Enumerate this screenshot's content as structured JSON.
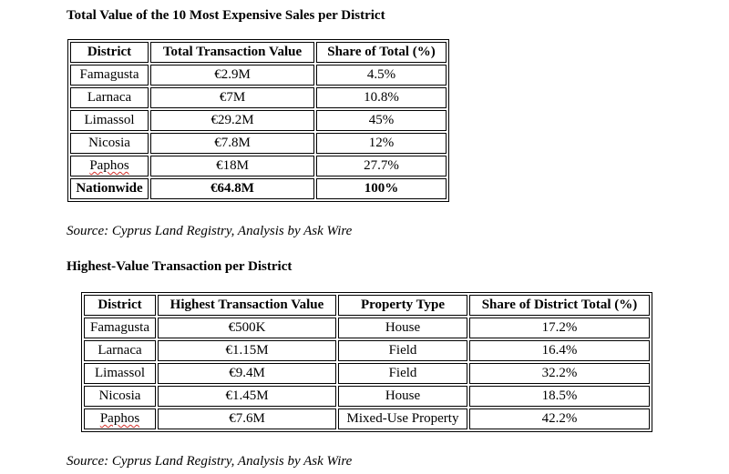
{
  "section1": {
    "title": "Total Value of the 10 Most Expensive Sales per District",
    "headers": [
      "District",
      "Total Transaction Value",
      "Share of Total (%)"
    ],
    "rows": [
      [
        "Famagusta",
        "€2.9M",
        "4.5%"
      ],
      [
        "Larnaca",
        "€7M",
        "10.8%"
      ],
      [
        "Limassol",
        "€29.2M",
        "45%"
      ],
      [
        "Nicosia",
        "€7.8M",
        "12%"
      ],
      [
        "Paphos",
        "€18M",
        "27.7%"
      ]
    ],
    "total_row": [
      "Nationwide",
      "€64.8M",
      "100%"
    ],
    "source": "Source: Cyprus Land Registry, Analysis by Ask Wire"
  },
  "section2": {
    "title": "Highest-Value Transaction per District",
    "headers": [
      "District",
      "Highest Transaction Value",
      "Property Type",
      "Share of District Total (%)"
    ],
    "rows": [
      [
        "Famagusta",
        "€500K",
        "House",
        "17.2%"
      ],
      [
        "Larnaca",
        "€1.15M",
        "Field",
        "16.4%"
      ],
      [
        "Limassol",
        "€9.4M",
        "Field",
        "32.2%"
      ],
      [
        "Nicosia",
        "€1.45M",
        "House",
        "18.5%"
      ],
      [
        "Paphos",
        "€7.6M",
        "Mixed-Use Property",
        "42.2%"
      ]
    ],
    "source": "Source: Cyprus Land Registry, Analysis by Ask Wire"
  },
  "colors": {
    "text": "#000000",
    "spellcheck_underline": "#d2302a",
    "background": "#ffffff"
  }
}
